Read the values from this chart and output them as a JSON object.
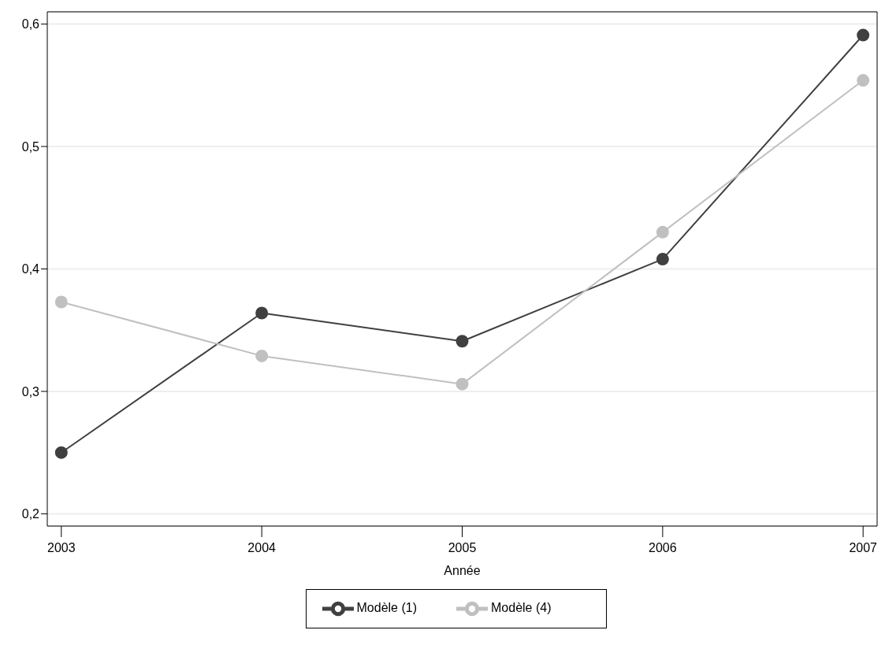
{
  "chart_data": {
    "type": "line",
    "xlabel": "Année",
    "x": [
      2003,
      2004,
      2005,
      2006,
      2007
    ],
    "series": [
      {
        "name": "Modèle (1)",
        "color": "#404040",
        "values": [
          0.25,
          0.364,
          0.341,
          0.408,
          0.591
        ]
      },
      {
        "name": "Modèle (4)",
        "color": "#c0c0c0",
        "values": [
          0.373,
          0.329,
          0.306,
          0.43,
          0.554
        ]
      }
    ],
    "xlim": [
      2002.93,
      2007.07
    ],
    "xticks": [
      2003,
      2004,
      2005,
      2006,
      2007
    ],
    "ylim": [
      0.19,
      0.61
    ],
    "yticks": [
      {
        "value": 0.2,
        "label": "0,2"
      },
      {
        "value": 0.3,
        "label": "0,3"
      },
      {
        "value": 0.4,
        "label": "0,4"
      },
      {
        "value": 0.5,
        "label": "0,5"
      },
      {
        "value": 0.6,
        "label": "0,6"
      }
    ],
    "grid": "y",
    "legend": "bottom",
    "marker": "circle",
    "line_style": "solid"
  }
}
